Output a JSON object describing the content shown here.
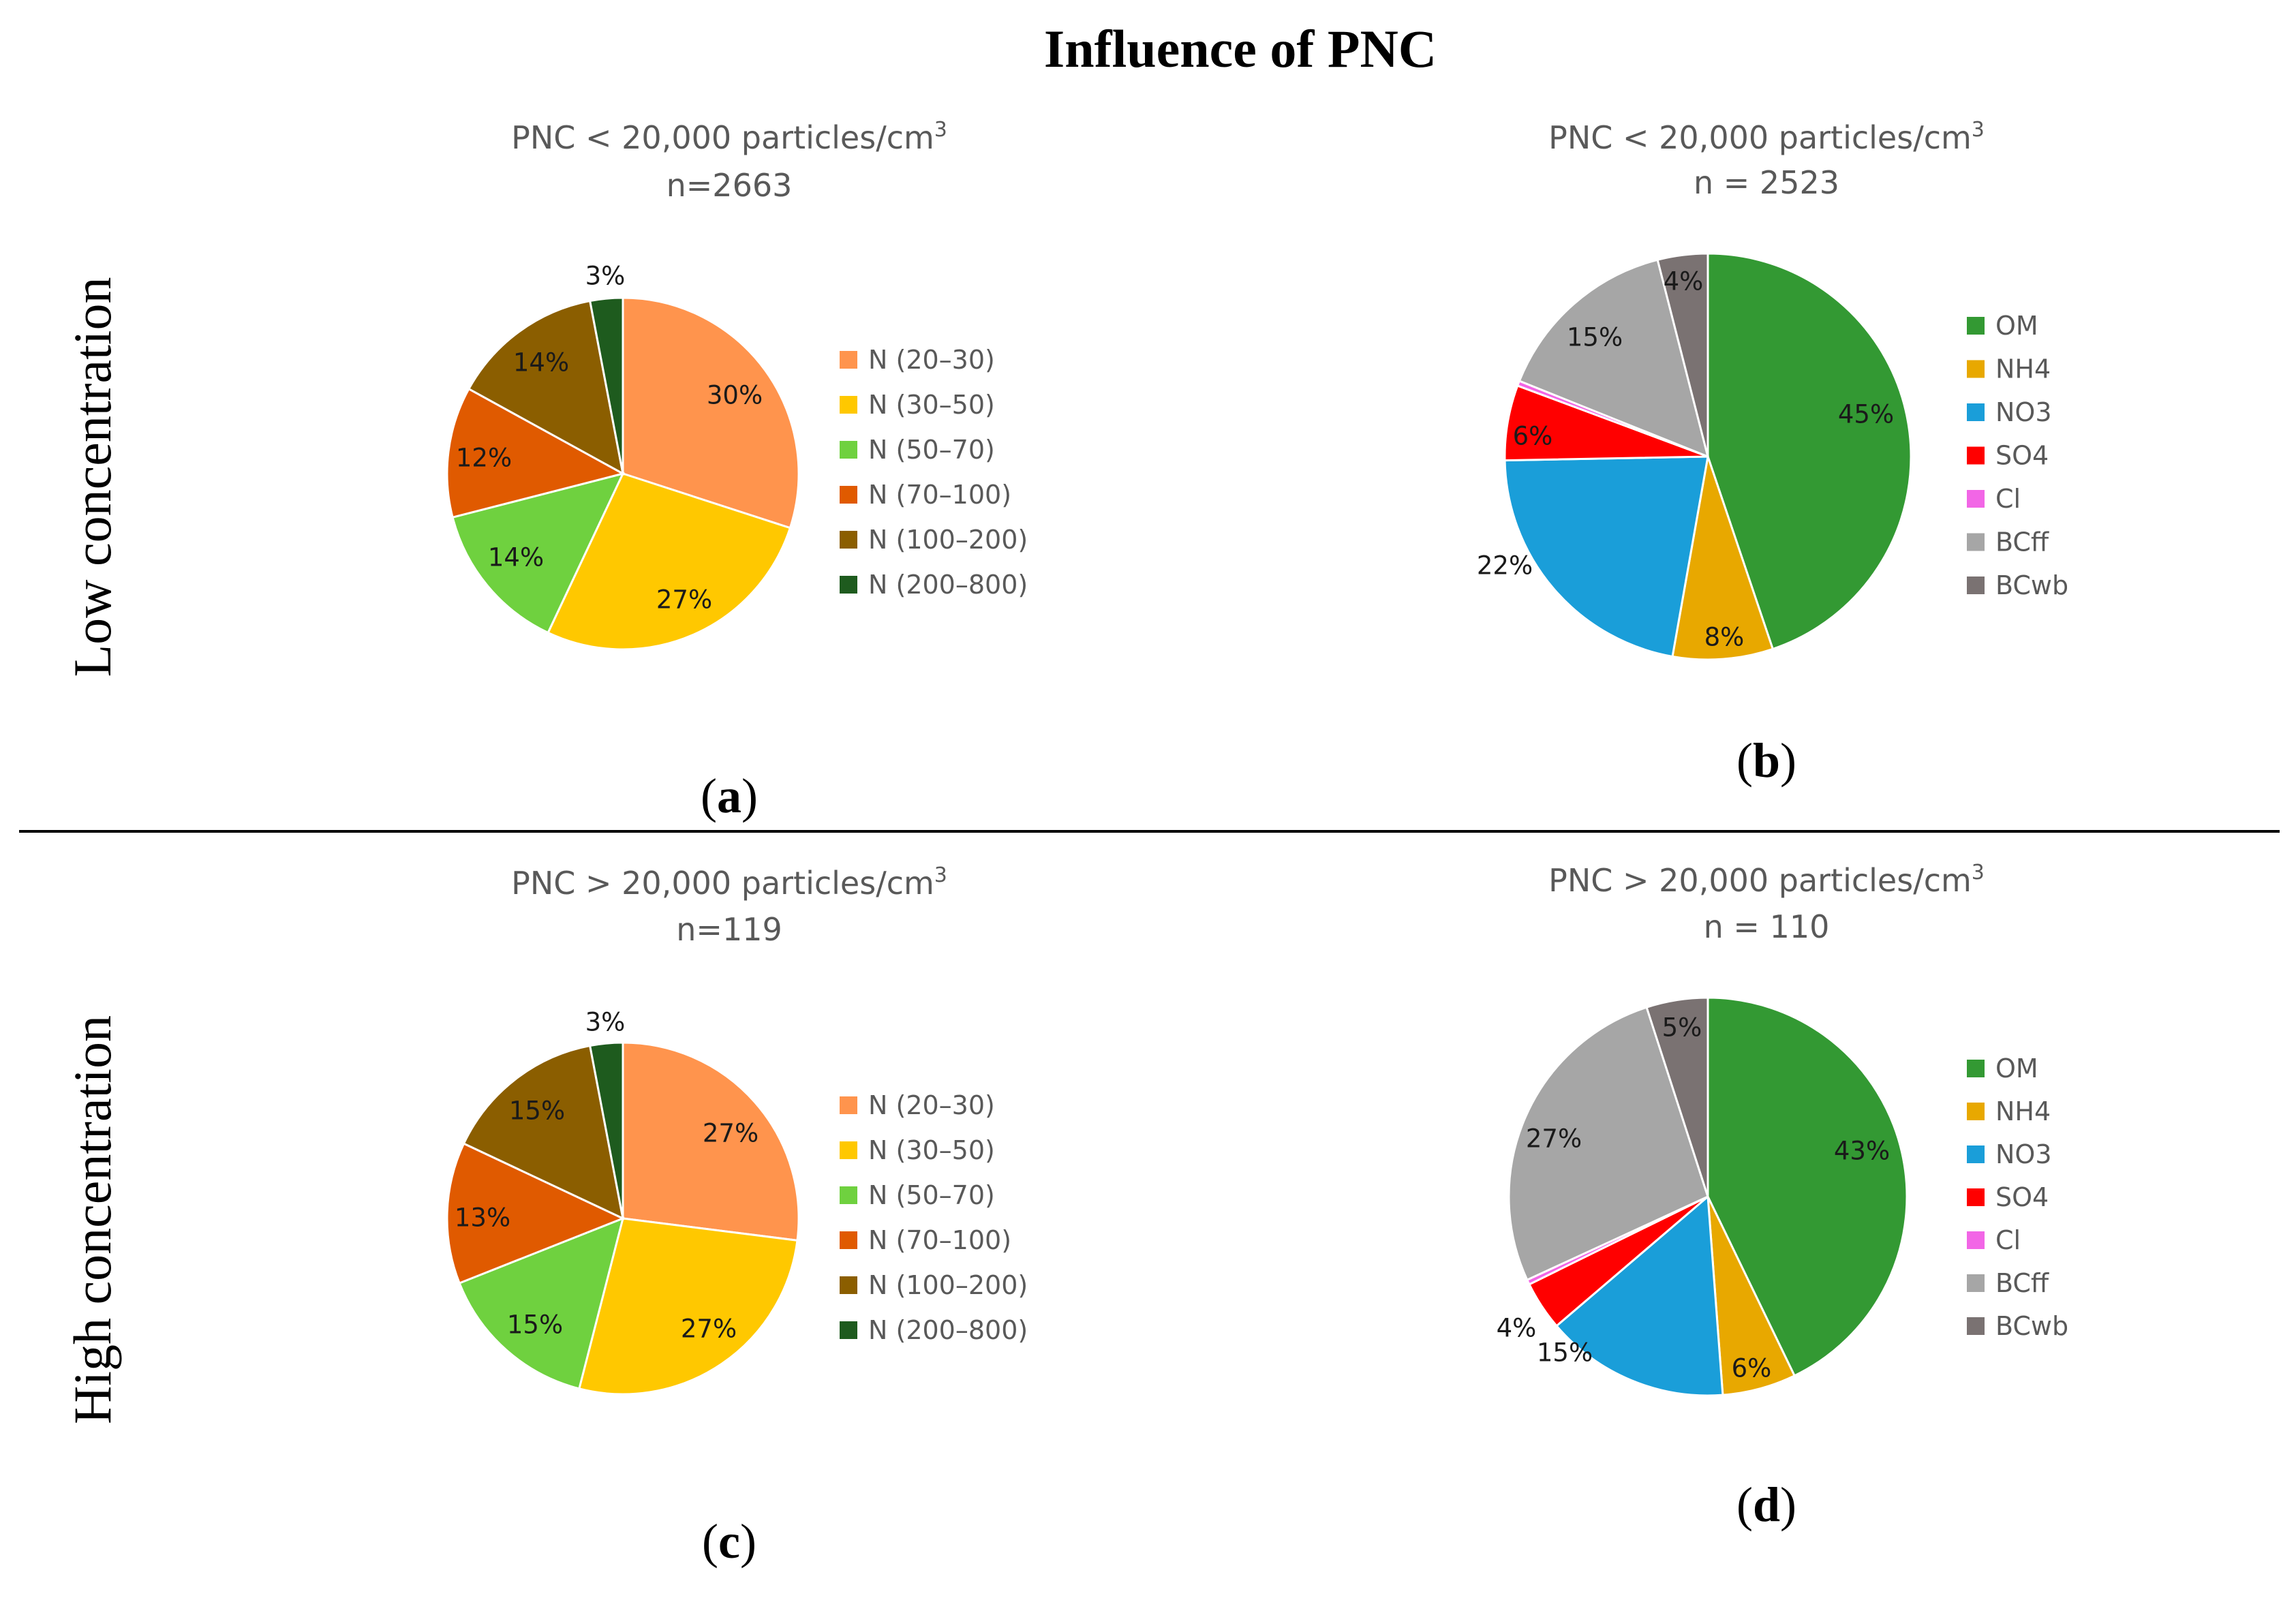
{
  "figure": {
    "title": "Influence of PNC",
    "row_labels": [
      "Low concentration",
      "High concentration"
    ]
  },
  "chart_data": [
    {
      "type": "pie",
      "panel": "(a)",
      "panel_letter": "a",
      "title": "PNC < 20,000 particles/cm",
      "title_sup": "3",
      "subtitle": "n=2663",
      "categories": [
        "N (20–30)",
        "N (30–50)",
        "N (50–70)",
        "N (70–100)",
        "N (100–200)",
        "N (200–800)"
      ],
      "values": [
        30,
        27,
        14,
        12,
        14,
        3
      ],
      "labels": [
        "30%",
        "27%",
        "14%",
        "12%",
        "14%",
        "3%"
      ],
      "colors": [
        "#FF944D",
        "#FFC800",
        "#6FD13F",
        "#E05A00",
        "#8B5E00",
        "#1E5B1E"
      ],
      "legend": "right"
    },
    {
      "type": "pie",
      "panel": "(b)",
      "panel_letter": "b",
      "title": "PNC < 20,000 particles/cm",
      "title_sup": "3",
      "subtitle": "n = 2523",
      "categories": [
        "OM",
        "NH4",
        "NO3",
        "SO4",
        "Cl",
        "BCff",
        "BCwb"
      ],
      "values": [
        45,
        8,
        22,
        6,
        0.4,
        15,
        4
      ],
      "labels": [
        "45%",
        "8%",
        "22%",
        "6%",
        "",
        "15%",
        "4%"
      ],
      "colors": [
        "#339933",
        "#E8A800",
        "#1A9ED9",
        "#FF0000",
        "#F266E6",
        "#A6A6A6",
        "#7A7272"
      ],
      "legend": "right"
    },
    {
      "type": "pie",
      "panel": "(c)",
      "panel_letter": "c",
      "title": "PNC > 20,000 particles/cm",
      "title_sup": "3",
      "subtitle": "n=119",
      "categories": [
        "N (20–30)",
        "N (30–50)",
        "N (50–70)",
        "N (70–100)",
        "N (100–200)",
        "N (200–800)"
      ],
      "values": [
        27,
        27,
        15,
        13,
        15,
        3
      ],
      "labels": [
        "27%",
        "27%",
        "15%",
        "13%",
        "15%",
        "3%"
      ],
      "colors": [
        "#FF944D",
        "#FFC800",
        "#6FD13F",
        "#E05A00",
        "#8B5E00",
        "#1E5B1E"
      ],
      "legend": "right"
    },
    {
      "type": "pie",
      "panel": "(d)",
      "panel_letter": "d",
      "title": "PNC > 20,000 particles/cm",
      "title_sup": "3",
      "subtitle": "n = 110",
      "categories": [
        "OM",
        "NH4",
        "NO3",
        "SO4",
        "Cl",
        "BCff",
        "BCwb"
      ],
      "values": [
        43,
        6,
        15,
        4,
        0.4,
        27,
        5
      ],
      "labels": [
        "43%",
        "6%",
        "15%",
        "4%",
        "",
        "27%",
        "5%"
      ],
      "colors": [
        "#339933",
        "#E8A800",
        "#1A9ED9",
        "#FF0000",
        "#F266E6",
        "#A6A6A6",
        "#7A7272"
      ],
      "legend": "right"
    }
  ]
}
